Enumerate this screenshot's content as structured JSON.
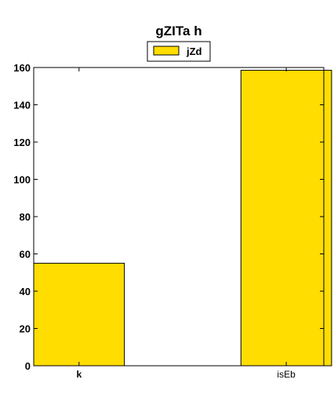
{
  "chart_data": {
    "type": "bar",
    "title": "gZITa h",
    "categories": [
      "k",
      "isEb"
    ],
    "category_label_bold": [
      true,
      false
    ],
    "series": [
      {
        "name": "jZd",
        "values": [
          55,
          158.5
        ],
        "color": "#ffdd00",
        "edge_color": "#000000"
      }
    ],
    "xlabel": "",
    "ylabel": "",
    "ylim": [
      0,
      160
    ],
    "yticks": [
      0,
      20,
      40,
      60,
      80,
      100,
      120,
      140,
      160
    ],
    "grid": false,
    "legend_position": "top-center"
  }
}
